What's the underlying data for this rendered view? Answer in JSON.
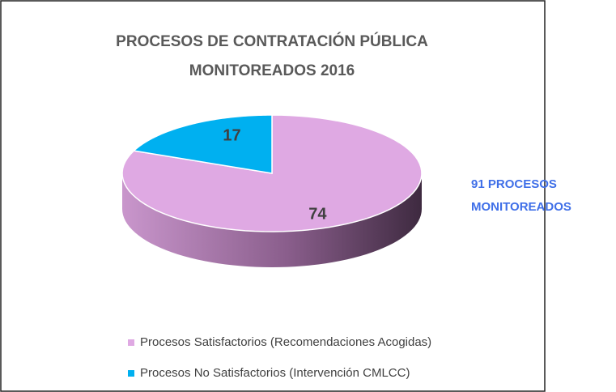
{
  "chart_data": {
    "type": "pie3d",
    "title": "PROCESOS DE CONTRATACIÓN PÚBLICA MONITOREADOS 2016",
    "annotation": "91 PROCESOS MONITOREADOS",
    "categories": [
      "Procesos Satisfactorios (Recomendaciones Acogidas)",
      "Procesos No Satisfactorios (Intervención CMLCC)"
    ],
    "values": [
      74,
      17
    ],
    "colors": [
      "#dfa9e3",
      "#00b0f0"
    ],
    "legend": "bottom-left"
  }
}
